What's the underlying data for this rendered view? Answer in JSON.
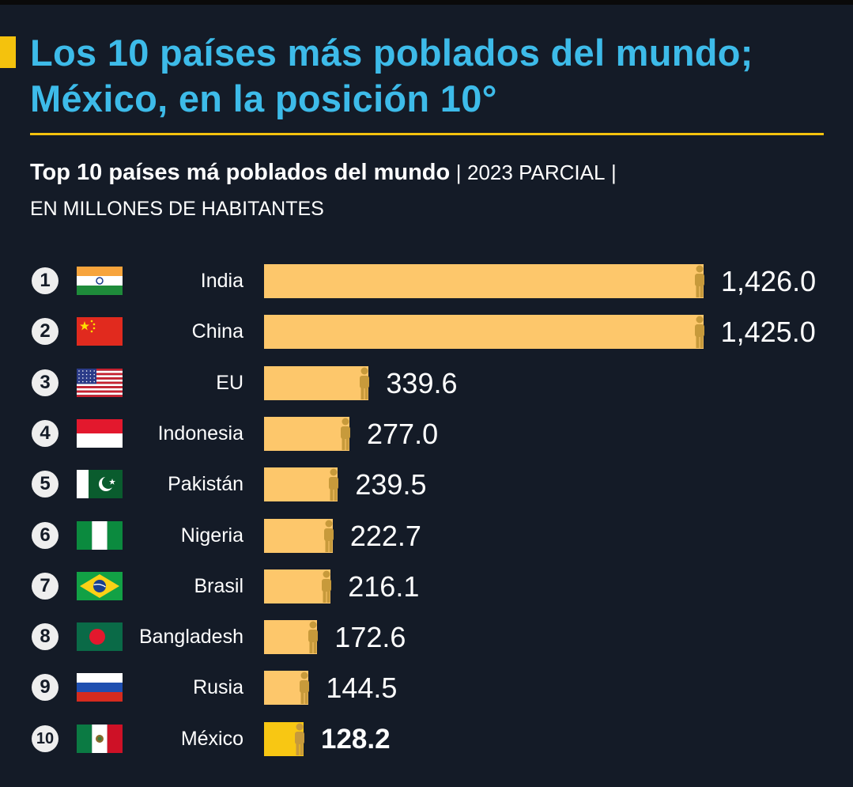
{
  "title": "Los 10 países más poblados del mundo; México, en la posición 10°",
  "subtitle": {
    "strong": "Top 10 países má poblados del mundo",
    "pipe_1": "|",
    "tag": "2023 PARCIAL",
    "pipe_2": "|",
    "unit": "EN MILLONES DE HABITANTES"
  },
  "colors": {
    "background": "#141b27",
    "title": "#3dbbe9",
    "accent": "#f4c20d",
    "bar": "#fdc76b",
    "bar_highlight": "#f8c713",
    "person_icon": "#c79a3b"
  },
  "chart_data": {
    "type": "bar",
    "orientation": "horizontal",
    "title": "Top 10 países má poblados del mundo",
    "categories": [
      "India",
      "China",
      "EU",
      "Indonesia",
      "Pakistán",
      "Nigeria",
      "Brasil",
      "Bangladesh",
      "Rusia",
      "México"
    ],
    "values": [
      1426.0,
      1425.0,
      339.6,
      277.0,
      239.5,
      222.7,
      216.1,
      172.6,
      144.5,
      128.2
    ],
    "value_labels": [
      "1,426.0",
      "1,425.0",
      "339.6",
      "277.0",
      "239.5",
      "222.7",
      "216.1",
      "172.6",
      "144.5",
      "128.2"
    ],
    "ranks": [
      "1",
      "2",
      "3",
      "4",
      "5",
      "6",
      "7",
      "8",
      "9",
      "10"
    ],
    "flags": [
      "india-flag",
      "china-flag",
      "usa-flag",
      "indonesia-flag",
      "pakistan-flag",
      "nigeria-flag",
      "brazil-flag",
      "bangladesh-flag",
      "russia-flag",
      "mexico-flag"
    ],
    "highlight": "México",
    "xlim": [
      0,
      1426
    ],
    "grid": false,
    "legend": "none"
  }
}
